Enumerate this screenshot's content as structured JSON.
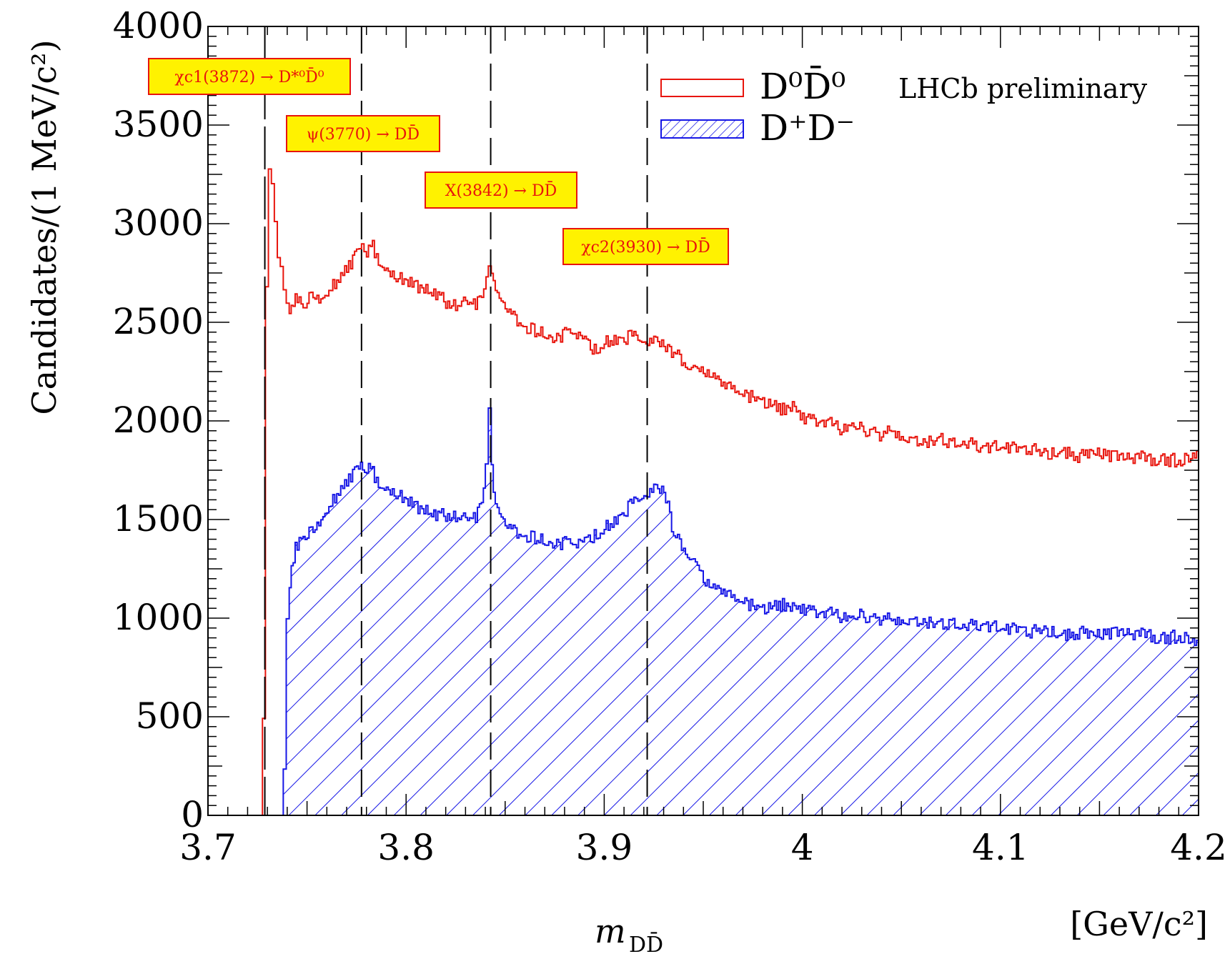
{
  "chart_data": {
    "type": "histogram",
    "xlabel_main": "m",
    "xlabel_sub": "DD̄",
    "xunit": "[GeV/c²]",
    "ylabel": "Candidates/(1 MeV/c²)",
    "xlim": [
      3.7,
      4.2
    ],
    "ylim": [
      0,
      4000
    ],
    "x_ticks": [
      "3.7",
      "3.8",
      "3.9",
      "4",
      "4.1",
      "4.2"
    ],
    "y_ticks": [
      "0",
      "500",
      "1000",
      "1500",
      "2000",
      "2500",
      "3000",
      "3500",
      "4000"
    ],
    "watermark": "LHCb preliminary",
    "legend_position": "top-right",
    "vlines": [
      3.7287,
      3.7775,
      3.8427,
      3.9217
    ],
    "annotations": [
      {
        "text": "χc1(3872) → D*⁰D̄⁰",
        "x": 3.7287
      },
      {
        "text": "ψ(3770) → DD̄",
        "x": 3.7775
      },
      {
        "text": "X(3842) → DD̄",
        "x": 3.8427
      },
      {
        "text": "χc2(3930) → DD̄",
        "x": 3.9217
      }
    ],
    "series": [
      {
        "name": "D⁰D̄⁰",
        "color": "#e8140c",
        "style": "outline",
        "points": [
          [
            3.7,
            0
          ],
          [
            3.726,
            0
          ],
          [
            3.7275,
            480
          ],
          [
            3.729,
            2700
          ],
          [
            3.7305,
            3300
          ],
          [
            3.732,
            3180
          ],
          [
            3.7335,
            3000
          ],
          [
            3.735,
            2800
          ],
          [
            3.7365,
            2760
          ],
          [
            3.738,
            2680
          ],
          [
            3.7395,
            2600
          ],
          [
            3.741,
            2540
          ],
          [
            3.743,
            2600
          ],
          [
            3.745,
            2620
          ],
          [
            3.748,
            2560
          ],
          [
            3.75,
            2620
          ],
          [
            3.753,
            2640
          ],
          [
            3.756,
            2620
          ],
          [
            3.76,
            2660
          ],
          [
            3.764,
            2700
          ],
          [
            3.768,
            2740
          ],
          [
            3.772,
            2800
          ],
          [
            3.775,
            2860
          ],
          [
            3.7775,
            2920
          ],
          [
            3.78,
            2860
          ],
          [
            3.783,
            2880
          ],
          [
            3.786,
            2820
          ],
          [
            3.79,
            2760
          ],
          [
            3.795,
            2730
          ],
          [
            3.8,
            2700
          ],
          [
            3.805,
            2680
          ],
          [
            3.81,
            2660
          ],
          [
            3.815,
            2640
          ],
          [
            3.82,
            2600
          ],
          [
            3.825,
            2580
          ],
          [
            3.83,
            2600
          ],
          [
            3.835,
            2600
          ],
          [
            3.838,
            2620
          ],
          [
            3.8415,
            2760
          ],
          [
            3.843,
            2720
          ],
          [
            3.846,
            2640
          ],
          [
            3.85,
            2560
          ],
          [
            3.855,
            2520
          ],
          [
            3.86,
            2480
          ],
          [
            3.865,
            2460
          ],
          [
            3.87,
            2440
          ],
          [
            3.875,
            2420
          ],
          [
            3.88,
            2440
          ],
          [
            3.885,
            2460
          ],
          [
            3.89,
            2420
          ],
          [
            3.895,
            2360
          ],
          [
            3.9,
            2400
          ],
          [
            3.905,
            2420
          ],
          [
            3.91,
            2420
          ],
          [
            3.915,
            2430
          ],
          [
            3.92,
            2420
          ],
          [
            3.925,
            2400
          ],
          [
            3.93,
            2380
          ],
          [
            3.935,
            2340
          ],
          [
            3.94,
            2300
          ],
          [
            3.945,
            2280
          ],
          [
            3.95,
            2260
          ],
          [
            3.955,
            2220
          ],
          [
            3.96,
            2180
          ],
          [
            3.965,
            2160
          ],
          [
            3.97,
            2140
          ],
          [
            3.975,
            2120
          ],
          [
            3.98,
            2100
          ],
          [
            3.985,
            2080
          ],
          [
            3.99,
            2060
          ],
          [
            3.995,
            2080
          ],
          [
            4.0,
            2020
          ],
          [
            4.005,
            2000
          ],
          [
            4.01,
            2000
          ],
          [
            4.015,
            1980
          ],
          [
            4.02,
            1960
          ],
          [
            4.025,
            1990
          ],
          [
            4.03,
            1960
          ],
          [
            4.035,
            1950
          ],
          [
            4.04,
            1930
          ],
          [
            4.045,
            1960
          ],
          [
            4.05,
            1920
          ],
          [
            4.055,
            1920
          ],
          [
            4.06,
            1900
          ],
          [
            4.065,
            1900
          ],
          [
            4.07,
            1920
          ],
          [
            4.075,
            1880
          ],
          [
            4.08,
            1900
          ],
          [
            4.085,
            1880
          ],
          [
            4.09,
            1860
          ],
          [
            4.095,
            1860
          ],
          [
            4.1,
            1870
          ],
          [
            4.105,
            1860
          ],
          [
            4.11,
            1850
          ],
          [
            4.115,
            1860
          ],
          [
            4.12,
            1840
          ],
          [
            4.125,
            1840
          ],
          [
            4.13,
            1850
          ],
          [
            4.135,
            1830
          ],
          [
            4.14,
            1820
          ],
          [
            4.145,
            1830
          ],
          [
            4.15,
            1830
          ],
          [
            4.155,
            1820
          ],
          [
            4.16,
            1810
          ],
          [
            4.165,
            1800
          ],
          [
            4.17,
            1820
          ],
          [
            4.175,
            1800
          ],
          [
            4.18,
            1810
          ],
          [
            4.185,
            1800
          ],
          [
            4.19,
            1800
          ],
          [
            4.195,
            1810
          ],
          [
            4.2,
            1830
          ]
        ]
      },
      {
        "name": "D⁺D⁻",
        "color": "#1616e6",
        "style": "hatched",
        "points": [
          [
            3.7,
            0
          ],
          [
            3.7375,
            0
          ],
          [
            3.738,
            250
          ],
          [
            3.7395,
            1000
          ],
          [
            3.741,
            1150
          ],
          [
            3.742,
            1250
          ],
          [
            3.744,
            1350
          ],
          [
            3.746,
            1380
          ],
          [
            3.748,
            1400
          ],
          [
            3.75,
            1430
          ],
          [
            3.753,
            1450
          ],
          [
            3.756,
            1490
          ],
          [
            3.758,
            1530
          ],
          [
            3.76,
            1560
          ],
          [
            3.763,
            1600
          ],
          [
            3.766,
            1640
          ],
          [
            3.769,
            1670
          ],
          [
            3.772,
            1720
          ],
          [
            3.775,
            1760
          ],
          [
            3.778,
            1770
          ],
          [
            3.781,
            1760
          ],
          [
            3.784,
            1720
          ],
          [
            3.787,
            1680
          ],
          [
            3.79,
            1650
          ],
          [
            3.795,
            1630
          ],
          [
            3.8,
            1590
          ],
          [
            3.805,
            1560
          ],
          [
            3.81,
            1540
          ],
          [
            3.815,
            1520
          ],
          [
            3.82,
            1520
          ],
          [
            3.825,
            1510
          ],
          [
            3.83,
            1500
          ],
          [
            3.835,
            1520
          ],
          [
            3.838,
            1580
          ],
          [
            3.84,
            1800
          ],
          [
            3.8415,
            2040
          ],
          [
            3.843,
            1750
          ],
          [
            3.844,
            1620
          ],
          [
            3.846,
            1550
          ],
          [
            3.85,
            1460
          ],
          [
            3.855,
            1440
          ],
          [
            3.86,
            1420
          ],
          [
            3.865,
            1410
          ],
          [
            3.87,
            1390
          ],
          [
            3.875,
            1380
          ],
          [
            3.88,
            1380
          ],
          [
            3.885,
            1390
          ],
          [
            3.89,
            1400
          ],
          [
            3.895,
            1420
          ],
          [
            3.9,
            1460
          ],
          [
            3.905,
            1500
          ],
          [
            3.91,
            1540
          ],
          [
            3.915,
            1590
          ],
          [
            3.92,
            1640
          ],
          [
            3.925,
            1650
          ],
          [
            3.93,
            1640
          ],
          [
            3.932,
            1570
          ],
          [
            3.935,
            1410
          ],
          [
            3.94,
            1360
          ],
          [
            3.945,
            1300
          ],
          [
            3.948,
            1260
          ],
          [
            3.95,
            1200
          ],
          [
            3.955,
            1150
          ],
          [
            3.96,
            1130
          ],
          [
            3.965,
            1100
          ],
          [
            3.97,
            1090
          ],
          [
            3.975,
            1060
          ],
          [
            3.98,
            1050
          ],
          [
            3.985,
            1060
          ],
          [
            3.99,
            1070
          ],
          [
            3.995,
            1060
          ],
          [
            4.0,
            1050
          ],
          [
            4.005,
            1030
          ],
          [
            4.01,
            1030
          ],
          [
            4.015,
            1020
          ],
          [
            4.02,
            1010
          ],
          [
            4.025,
            1010
          ],
          [
            4.03,
            1020
          ],
          [
            4.035,
            1000
          ],
          [
            4.04,
            1000
          ],
          [
            4.045,
            1000
          ],
          [
            4.05,
            990
          ],
          [
            4.055,
            1000
          ],
          [
            4.06,
            990
          ],
          [
            4.065,
            980
          ],
          [
            4.07,
            980
          ],
          [
            4.075,
            970
          ],
          [
            4.08,
            970
          ],
          [
            4.085,
            960
          ],
          [
            4.09,
            960
          ],
          [
            4.095,
            950
          ],
          [
            4.1,
            950
          ],
          [
            4.105,
            940
          ],
          [
            4.11,
            940
          ],
          [
            4.115,
            930
          ],
          [
            4.12,
            940
          ],
          [
            4.125,
            940
          ],
          [
            4.13,
            920
          ],
          [
            4.135,
            910
          ],
          [
            4.14,
            930
          ],
          [
            4.145,
            910
          ],
          [
            4.15,
            910
          ],
          [
            4.155,
            920
          ],
          [
            4.16,
            920
          ],
          [
            4.165,
            910
          ],
          [
            4.17,
            920
          ],
          [
            4.175,
            910
          ],
          [
            4.18,
            900
          ],
          [
            4.185,
            900
          ],
          [
            4.19,
            910
          ],
          [
            4.195,
            890
          ],
          [
            4.2,
            860
          ]
        ]
      }
    ]
  }
}
